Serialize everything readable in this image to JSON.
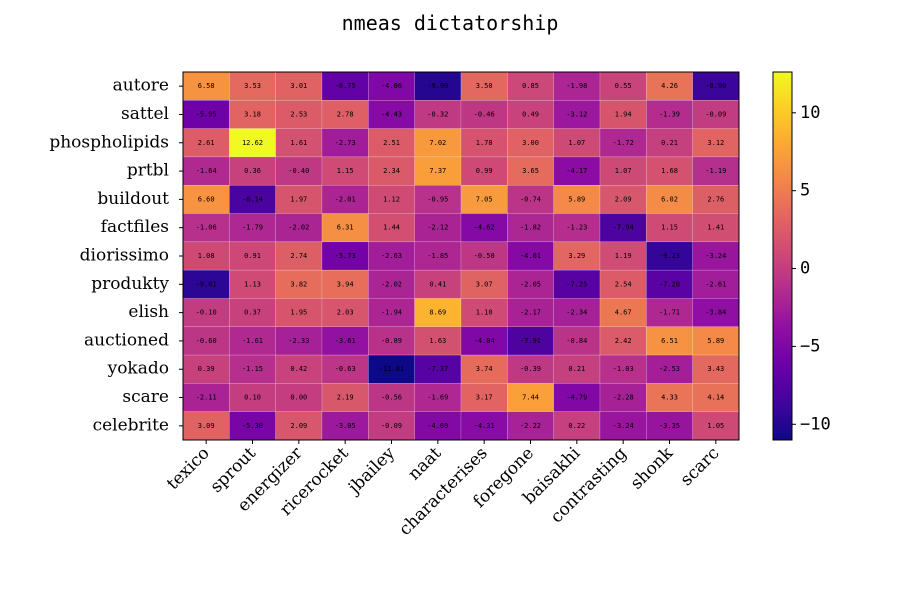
{
  "chart_data": {
    "type": "heatmap",
    "title": "nmeas dictatorship",
    "colormap": "plasma",
    "x_categories": [
      "texico",
      "sprout",
      "energizer",
      "ricerocket",
      "jbailey",
      "naat",
      "characterises",
      "foregone",
      "baisakhi",
      "contrasting",
      "shonk",
      "scarc"
    ],
    "y_categories": [
      "autore",
      "sattel",
      "phospholipids",
      "prtbl",
      "buildout",
      "factfiles",
      "diorissimo",
      "produkty",
      "elish",
      "auctioned",
      "yokado",
      "scare",
      "celebrite"
    ],
    "values": [
      [
        6.58,
        3.53,
        3.01,
        -6.75,
        -4.86,
        -9.9,
        3.5,
        0.85,
        -1.98,
        0.55,
        4.26,
        -8.9
      ],
      [
        -5.95,
        3.18,
        2.53,
        2.78,
        -4.43,
        -0.32,
        -0.46,
        0.49,
        -3.12,
        1.94,
        -1.39,
        -0.09
      ],
      [
        2.61,
        12.62,
        1.61,
        -2.73,
        2.51,
        7.02,
        1.78,
        3.0,
        1.07,
        -1.72,
        0.21,
        3.12
      ],
      [
        -1.64,
        0.36,
        -0.4,
        1.15,
        2.34,
        7.37,
        0.99,
        3.65,
        -4.17,
        1.07,
        1.68,
        -1.19
      ],
      [
        6.6,
        -8.14,
        1.97,
        -2.01,
        1.12,
        -0.95,
        7.05,
        -0.74,
        5.89,
        2.09,
        6.02,
        2.76
      ],
      [
        -1.06,
        -1.79,
        -2.02,
        6.31,
        1.44,
        -2.12,
        -4.62,
        -1.82,
        -1.23,
        -7.94,
        1.15,
        1.41
      ],
      [
        1.08,
        0.91,
        2.74,
        -5.73,
        -2.63,
        -1.85,
        -0.5,
        -4.61,
        3.29,
        1.19,
        -9.23,
        -3.24
      ],
      [
        -9.61,
        1.13,
        3.82,
        3.94,
        -2.02,
        0.41,
        3.07,
        -2.05,
        -7.25,
        2.54,
        -7.2,
        -2.61
      ],
      [
        -0.1,
        0.37,
        1.95,
        2.03,
        -1.94,
        8.69,
        1.1,
        -2.17,
        -2.34,
        4.67,
        -1.71,
        -3.84
      ],
      [
        -0.6,
        -1.61,
        -2.33,
        -3.61,
        -0.89,
        1.63,
        -4.84,
        -7.91,
        -0.84,
        2.42,
        6.51,
        5.89
      ],
      [
        0.39,
        -1.15,
        0.42,
        -0.63,
        -11.01,
        -7.37,
        3.74,
        -0.39,
        0.21,
        -1.03,
        -2.53,
        3.43
      ],
      [
        -2.11,
        0.1,
        0.0,
        2.19,
        -0.56,
        -1.69,
        3.17,
        7.44,
        -4.79,
        -2.28,
        4.33,
        4.14
      ],
      [
        3.09,
        -5.3,
        2.09,
        -3.05,
        -0.09,
        -4.69,
        -4.31,
        -2.22,
        0.22,
        -3.24,
        -3.35,
        1.05
      ]
    ],
    "value_labels": [
      [
        "6.58",
        "3.53",
        "3.01",
        "-6.75",
        "-4.86",
        "-9.90",
        "3.50",
        "0.85",
        "-1.98",
        "0.55",
        "4.26",
        "-8.90"
      ],
      [
        "-5.95",
        "3.18",
        "2.53",
        "2.78",
        "-4.43",
        "-0.32",
        "-0.46",
        "0.49",
        "-3.12",
        "1.94",
        "-1.39",
        "-0.09"
      ],
      [
        "2.61",
        "12.62",
        "1.61",
        "-2.73",
        "2.51",
        "7.02",
        "1.78",
        "3.00",
        "1.07",
        "-1.72",
        "0.21",
        "3.12"
      ],
      [
        "-1.64",
        "0.36",
        "-0.40",
        "1.15",
        "2.34",
        "7.37",
        "0.99",
        "3.65",
        "-4.17",
        "1.07",
        "1.68",
        "-1.19"
      ],
      [
        "6.60",
        "-8.14",
        "1.97",
        "-2.01",
        "1.12",
        "-0.95",
        "7.05",
        "-0.74",
        "5.89",
        "2.09",
        "6.02",
        "2.76"
      ],
      [
        "-1.06",
        "-1.79",
        "-2.02",
        "6.31",
        "1.44",
        "-2.12",
        "-4.62",
        "-1.82",
        "-1.23",
        "-7.94",
        "1.15",
        "1.41"
      ],
      [
        "1.08",
        "0.91",
        "2.74",
        "-5.73",
        "-2.63",
        "-1.85",
        "-0.50",
        "-4.61",
        "3.29",
        "1.19",
        "-9.23",
        "-3.24"
      ],
      [
        "-9.61",
        "1.13",
        "3.82",
        "3.94",
        "-2.02",
        "0.41",
        "3.07",
        "-2.05",
        "-7.25",
        "2.54",
        "-7.20",
        "-2.61"
      ],
      [
        "-0.10",
        "0.37",
        "1.95",
        "2.03",
        "-1.94",
        "8.69",
        "1.10",
        "-2.17",
        "-2.34",
        "4.67",
        "-1.71",
        "-3.84"
      ],
      [
        "-0.60",
        "-1.61",
        "-2.33",
        "-3.61",
        "-0.89",
        "1.63",
        "-4.84",
        "-7.91",
        "-0.84",
        "2.42",
        "6.51",
        "5.89"
      ],
      [
        "0.39",
        "-1.15",
        "0.42",
        "-0.63",
        "-11.01",
        "-7.37",
        "3.74",
        "-0.39",
        "0.21",
        "-1.03",
        "-2.53",
        "3.43"
      ],
      [
        "-2.11",
        "0.10",
        "0.00",
        "2.19",
        "-0.56",
        "-1.69",
        "3.17",
        "7.44",
        "-4.79",
        "-2.28",
        "4.33",
        "4.14"
      ],
      [
        "3.09",
        "-5.30",
        "2.09",
        "-3.05",
        "-0.09",
        "-4.69",
        "-4.31",
        "-2.22",
        "0.22",
        "-3.24",
        "-3.35",
        "1.05"
      ]
    ],
    "clim": [
      -11.01,
      12.62
    ],
    "cticks": [
      {
        "value": -10,
        "label": "−10"
      },
      {
        "value": -5,
        "label": "−5"
      },
      0,
      5,
      10
    ]
  }
}
